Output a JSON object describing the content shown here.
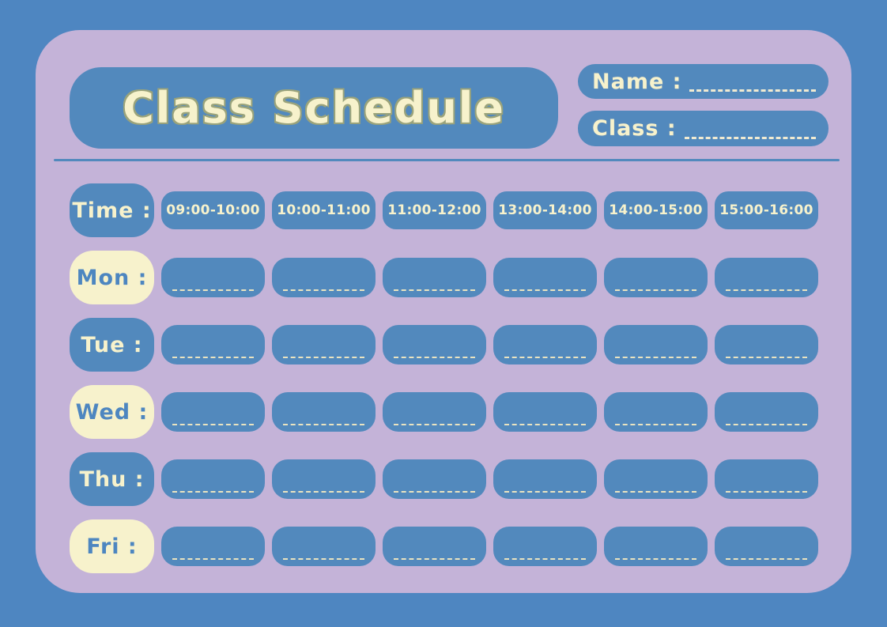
{
  "header": {
    "title": "Class Schedule",
    "name_label": "Name :",
    "name_value": "",
    "class_label": "Class :",
    "class_value": ""
  },
  "schedule": {
    "time_label": "Time :",
    "time_slots": [
      "09:00-10:00",
      "10:00-11:00",
      "11:00-12:00",
      "13:00-14:00",
      "14:00-15:00",
      "15:00-16:00"
    ],
    "days": [
      {
        "key": "mon",
        "label": "Mon :",
        "entries": [
          "",
          "",
          "",
          "",
          "",
          ""
        ]
      },
      {
        "key": "tue",
        "label": "Tue :",
        "entries": [
          "",
          "",
          "",
          "",
          "",
          ""
        ]
      },
      {
        "key": "wed",
        "label": "Wed :",
        "entries": [
          "",
          "",
          "",
          "",
          "",
          ""
        ]
      },
      {
        "key": "thu",
        "label": "Thu :",
        "entries": [
          "",
          "",
          "",
          "",
          "",
          ""
        ]
      },
      {
        "key": "fri",
        "label": "Fri :",
        "entries": [
          "",
          "",
          "",
          "",
          "",
          ""
        ]
      }
    ]
  },
  "colors": {
    "background_blue": "#4e86c1",
    "pill_blue": "#5289bd",
    "card_purple": "#c4b3d8",
    "cream": "#f7f2cc",
    "title_outline": "#9aa37b",
    "dashed_line": "#e9e3c0"
  }
}
